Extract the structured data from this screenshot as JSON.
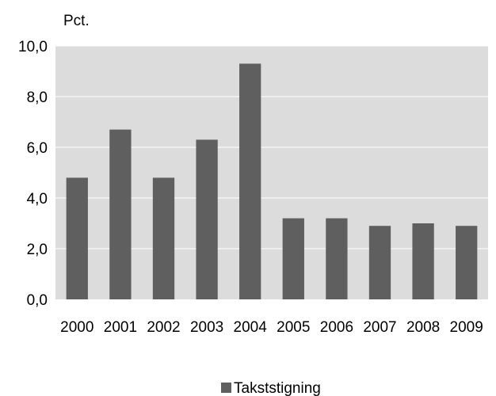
{
  "chart_data": {
    "type": "bar",
    "unit_label": "Pct.",
    "categories": [
      "2000",
      "2001",
      "2002",
      "2003",
      "2004",
      "2005",
      "2006",
      "2007",
      "2008",
      "2009"
    ],
    "series": [
      {
        "name": "Takststigning",
        "values": [
          4.8,
          6.7,
          4.8,
          6.3,
          9.3,
          3.2,
          3.2,
          2.9,
          3.0,
          2.9
        ],
        "color": "#5f5f5f"
      }
    ],
    "y_ticks": [
      "0,0",
      "2,0",
      "4,0",
      "6,0",
      "8,0",
      "10,0"
    ],
    "ylim": [
      0,
      10
    ],
    "grid": true,
    "plot_background": "#dcdcdc",
    "gridline_color": "#ffffff",
    "legend_position": "bottom-center"
  }
}
